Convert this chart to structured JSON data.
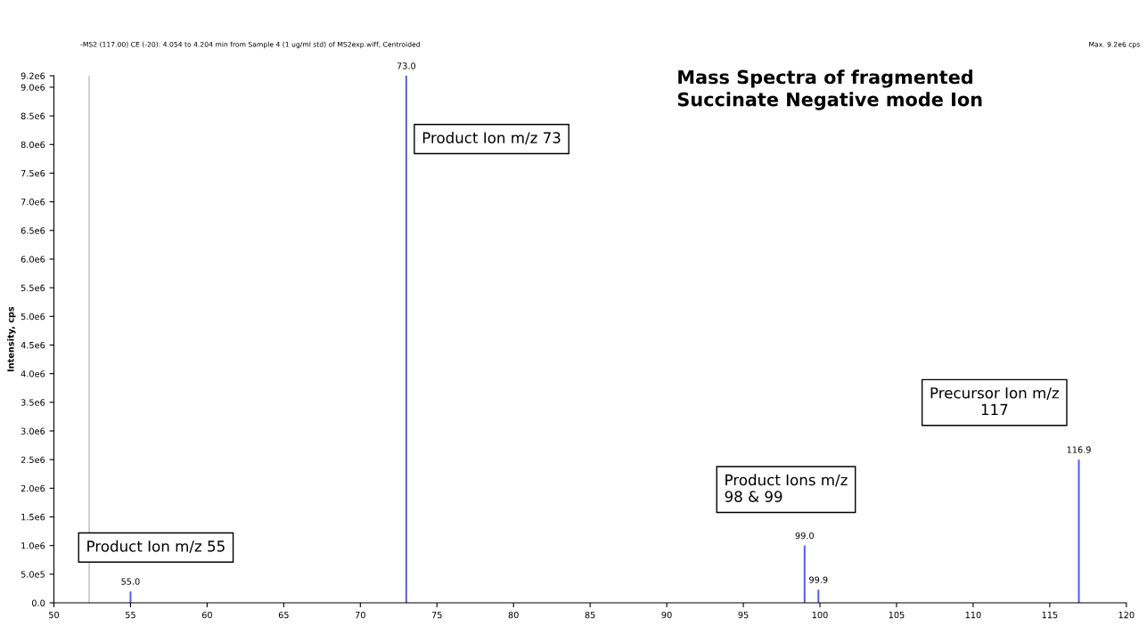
{
  "chart_data": {
    "type": "bar",
    "title": "Mass Spectra of fragmented\nSuccinate Negative mode Ion",
    "subtitle": "-MS2 (117.00) CE (-20): 4.054 to 4.204 min from Sample 4 (1 ug/ml std) of MS2exp.wiff, Centroided",
    "ylabel": "Intensity, cps",
    "x": [
      55.0,
      73.0,
      99.0,
      99.9,
      116.9
    ],
    "values": [
      200000,
      9200000,
      1000000,
      230000,
      2500000
    ],
    "color": "#5b5bff",
    "xlim": [
      50,
      120
    ],
    "xticks": [
      50,
      55,
      60,
      65,
      70,
      75,
      80,
      85,
      90,
      95,
      100,
      105,
      110,
      115,
      120
    ],
    "ylim": [
      0,
      9200000
    ],
    "yticks": [
      {
        "value": 0,
        "label": "0.0"
      },
      {
        "value": 500000,
        "label": "5.0e5"
      },
      {
        "value": 1000000,
        "label": "1.0e6"
      },
      {
        "value": 1500000,
        "label": "1.5e6"
      },
      {
        "value": 2000000,
        "label": "2.0e6"
      },
      {
        "value": 2500000,
        "label": "2.5e6"
      },
      {
        "value": 3000000,
        "label": "3.0e6"
      },
      {
        "value": 3500000,
        "label": "3.5e6"
      },
      {
        "value": 4000000,
        "label": "4.0e6"
      },
      {
        "value": 4500000,
        "label": "4.5e6"
      },
      {
        "value": 5000000,
        "label": "5.0e6"
      },
      {
        "value": 5500000,
        "label": "5.5e6"
      },
      {
        "value": 6000000,
        "label": "6.0e6"
      },
      {
        "value": 6500000,
        "label": "6.5e6"
      },
      {
        "value": 7000000,
        "label": "7.0e6"
      },
      {
        "value": 7500000,
        "label": "7.5e6"
      },
      {
        "value": 8000000,
        "label": "8.0e6"
      },
      {
        "value": 8500000,
        "label": "8.5e6"
      },
      {
        "value": 9000000,
        "label": "9.0e6"
      },
      {
        "value": 9200000,
        "label": "9.2e6"
      }
    ],
    "ref_lines": [
      {
        "axis": "x",
        "value": 52.3,
        "color": "#c8c8c8"
      }
    ],
    "annotations": [
      "Max. 9.2e6 cps",
      "Product Ion m/z 73",
      "Product Ion m/z 55",
      "Product Ions m/z\n98 & 99",
      "Precursor Ion m/z\n117",
      {
        "text": "55.0",
        "x": 55.0,
        "y": 200000
      },
      {
        "text": "73.0",
        "x": 73.0,
        "y": 9200000
      },
      {
        "text": "99.0",
        "x": 99.0,
        "y": 1000000
      },
      {
        "text": "99.9",
        "x": 99.9,
        "y": 230000
      },
      {
        "text": "116.9",
        "x": 116.9,
        "y": 2500000
      }
    ],
    "grid": false,
    "legend": false
  }
}
